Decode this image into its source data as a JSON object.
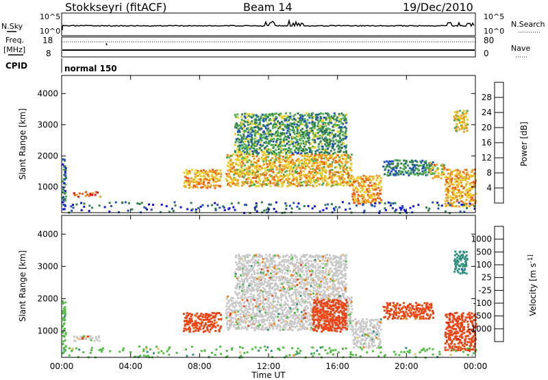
{
  "header": {
    "station": "Stokkseyri (fitACF)",
    "beam": "Beam 14",
    "date": "19/Dec/2010"
  },
  "top_panels": {
    "nsky_label": "N.Sky",
    "nsearch_label": "N.Search",
    "nsky_ticks": [
      "10^5",
      "10^0"
    ],
    "nsearch_ticks": [
      "10^5",
      "10^0"
    ],
    "freq_label_1": "Freq.",
    "freq_label_2": "[MHz]",
    "freq_ticks": [
      "18",
      "8"
    ],
    "nave_label": "Nave",
    "nave_ticks": [
      "80",
      "0"
    ],
    "cpid_label": "CPID",
    "cpid_value": "normal 150"
  },
  "colors": {
    "power": [
      "#1010f0",
      "#2050c0",
      "#2f7f4a",
      "#4fae4f",
      "#e8d020",
      "#f0a020",
      "#f06010",
      "#e01010"
    ],
    "velocity": [
      "#e01010",
      "#f04010",
      "#f08010",
      "#f0c060",
      "#c8c8c8",
      "#50c040",
      "#2f8f7f",
      "#2060c0",
      "#1030d0"
    ]
  },
  "chart_data": [
    {
      "type": "heatmap",
      "xlabel": "Time UT",
      "ylabel": "Slant Range [km]",
      "x_ticks": [
        "00:00",
        "04:00",
        "08:00",
        "12:00",
        "16:00",
        "20:00",
        "00:00"
      ],
      "x_range_hours": [
        0,
        24
      ],
      "y_ticks": [
        1000,
        2000,
        3000,
        4000
      ],
      "ylim": [
        180,
        4580
      ],
      "colorbar": {
        "title": "Power [dB]",
        "ticks": [
          "4",
          "8",
          "12",
          "16",
          "20",
          "24",
          "28"
        ],
        "range": [
          0,
          32
        ]
      },
      "regions": [
        {
          "x": [
            0.0,
            0.2
          ],
          "y": [
            300,
            1950
          ],
          "value": 8
        },
        {
          "x": [
            0.6,
            2.2
          ],
          "y": [
            720,
            880
          ],
          "value": 26
        },
        {
          "x": [
            7.0,
            9.2
          ],
          "y": [
            1000,
            1600
          ],
          "value": 22
        },
        {
          "x": [
            9.5,
            16.8
          ],
          "y": [
            1050,
            2100
          ],
          "value": 20
        },
        {
          "x": [
            10.0,
            16.5
          ],
          "y": [
            2100,
            3400
          ],
          "value": 12
        },
        {
          "x": [
            16.8,
            18.5
          ],
          "y": [
            500,
            1400
          ],
          "value": 22
        },
        {
          "x": [
            18.6,
            21.5
          ],
          "y": [
            1400,
            1900
          ],
          "value": 10
        },
        {
          "x": [
            21.3,
            22.2
          ],
          "y": [
            1300,
            1800
          ],
          "value": 20
        },
        {
          "x": [
            22.2,
            24.0
          ],
          "y": [
            400,
            1600
          ],
          "value": 22
        },
        {
          "x": [
            22.7,
            23.5
          ],
          "y": [
            2800,
            3500
          ],
          "value": 18
        },
        {
          "x": [
            0.0,
            24.0
          ],
          "y": [
            200,
            550
          ],
          "value": 6
        }
      ]
    },
    {
      "type": "heatmap",
      "xlabel": "Time UT",
      "ylabel": "Slant Range [km]",
      "x_ticks": [
        "00:00",
        "04:00",
        "08:00",
        "12:00",
        "16:00",
        "20:00",
        "00:00"
      ],
      "x_range_hours": [
        0,
        24
      ],
      "y_ticks": [
        1000,
        2000,
        3000,
        4000
      ],
      "ylim": [
        180,
        4580
      ],
      "colorbar": {
        "title": "Velocity [m s^-1]",
        "ticks": [
          "1000",
          "500",
          "100",
          "25",
          "-25",
          "-100",
          "-500",
          "-1000"
        ]
      },
      "regions": [
        {
          "x": [
            0.0,
            0.2
          ],
          "y": [
            300,
            1950
          ],
          "value": 100
        },
        {
          "x": [
            0.6,
            2.2
          ],
          "y": [
            720,
            880
          ],
          "value": 0
        },
        {
          "x": [
            7.0,
            9.2
          ],
          "y": [
            1000,
            1600
          ],
          "value": -150
        },
        {
          "x": [
            9.5,
            16.8
          ],
          "y": [
            1050,
            2100
          ],
          "value": 0
        },
        {
          "x": [
            14.5,
            16.5
          ],
          "y": [
            1000,
            2000
          ],
          "value": -300
        },
        {
          "x": [
            10.0,
            16.5
          ],
          "y": [
            2100,
            3400
          ],
          "value": 0
        },
        {
          "x": [
            16.8,
            18.5
          ],
          "y": [
            500,
            1400
          ],
          "value": 0
        },
        {
          "x": [
            18.6,
            21.5
          ],
          "y": [
            1400,
            1900
          ],
          "value": -150
        },
        {
          "x": [
            22.2,
            24.0
          ],
          "y": [
            400,
            1600
          ],
          "value": -400
        },
        {
          "x": [
            22.7,
            23.5
          ],
          "y": [
            2800,
            3500
          ],
          "value": 400
        },
        {
          "x": [
            0.0,
            24.0
          ],
          "y": [
            200,
            550
          ],
          "value": 80
        }
      ]
    }
  ]
}
